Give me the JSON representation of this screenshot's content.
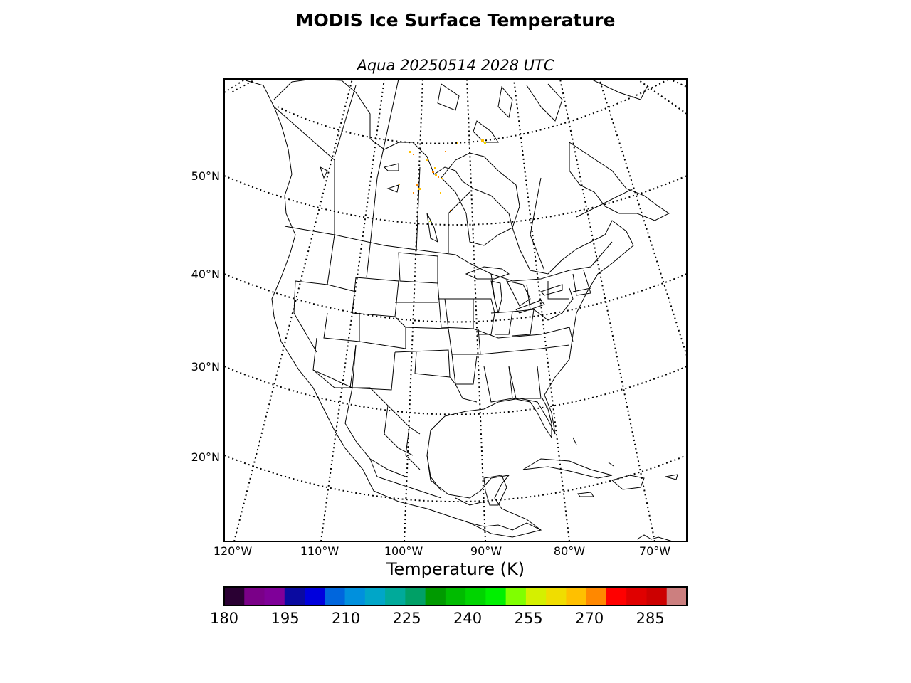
{
  "header": {
    "title": "MODIS Ice Surface Temperature",
    "subtitle": "Aqua 20250514 2028 UTC"
  },
  "map": {
    "latitude_labels": [
      "50°N",
      "40°N",
      "30°N",
      "20°N"
    ],
    "longitude_labels": [
      "120°W",
      "110°W",
      "100°W",
      "90°W",
      "80°W",
      "70°W"
    ],
    "graticule_style": "dotted",
    "region": "North America"
  },
  "colorbar": {
    "label": "Temperature (K)",
    "min": 180,
    "max": 294,
    "step": 5,
    "ticks": [
      "180",
      "195",
      "210",
      "225",
      "240",
      "255",
      "270",
      "285"
    ],
    "colors": [
      "#2a0033",
      "#7a0088",
      "#7f0099",
      "#0a0aa0",
      "#0000dd",
      "#0066dd",
      "#0090dd",
      "#00a6c8",
      "#00aa9a",
      "#00a066",
      "#009a00",
      "#00bb00",
      "#00d400",
      "#00f000",
      "#80ff00",
      "#d4f000",
      "#f0dd00",
      "#ffc000",
      "#ff8800",
      "#ff0000",
      "#e00000",
      "#cc0000",
      "#cc7f7f"
    ]
  }
}
